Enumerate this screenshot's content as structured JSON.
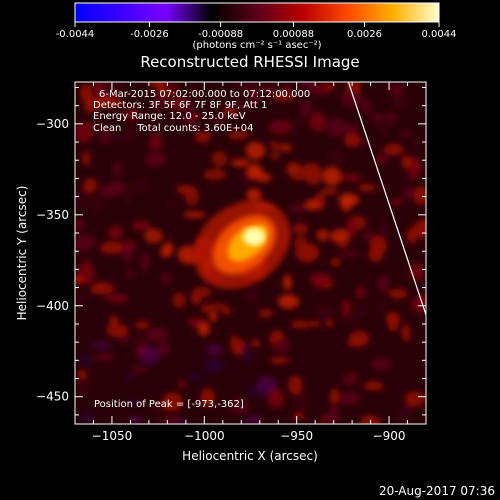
{
  "colorbar": {
    "ticks": [
      "-0.0044",
      "-0.0026",
      "-0.00088",
      "0.00088",
      "0.0026",
      "0.0044"
    ],
    "units": "(photons cm⁻² s⁻¹ asec⁻²)",
    "range": [
      -0.0044,
      0.0044
    ],
    "colors": [
      "#0000ff",
      "#3a00ff",
      "#7a00ff",
      "#000000",
      "#5a0018",
      "#b80000",
      "#ff4a00",
      "#ffb000",
      "#ffffd0"
    ]
  },
  "chart_data": {
    "type": "heatmap",
    "title": "Reconstructed RHESSI Image",
    "xlabel": "Heliocentric X (arcsec)",
    "ylabel": "Heliocentric Y (arcsec)",
    "xlim": [
      -1070,
      -880
    ],
    "ylim": [
      -465,
      -277
    ],
    "xticks": [
      -1050,
      -1000,
      -950,
      -900
    ],
    "yticks": [
      -300,
      -350,
      -400,
      -450
    ],
    "annotations": [
      "6-Mar-2015 07:02:00.000 to 07:12:00.000",
      "Detectors: 3F 5F 6F 7F 8F 9F, Att 1",
      "Energy Range: 12.0 - 25.0 keV",
      "Clean     Total counts: 3.60E+04"
    ],
    "peak_label": "Position of Peak = [-973,-362]",
    "peak": [
      -973,
      -362
    ],
    "limb_line": [
      [
        -922,
        -277
      ],
      [
        -880,
        -405
      ]
    ]
  },
  "timestamp": "20-Aug-2017 07:36"
}
